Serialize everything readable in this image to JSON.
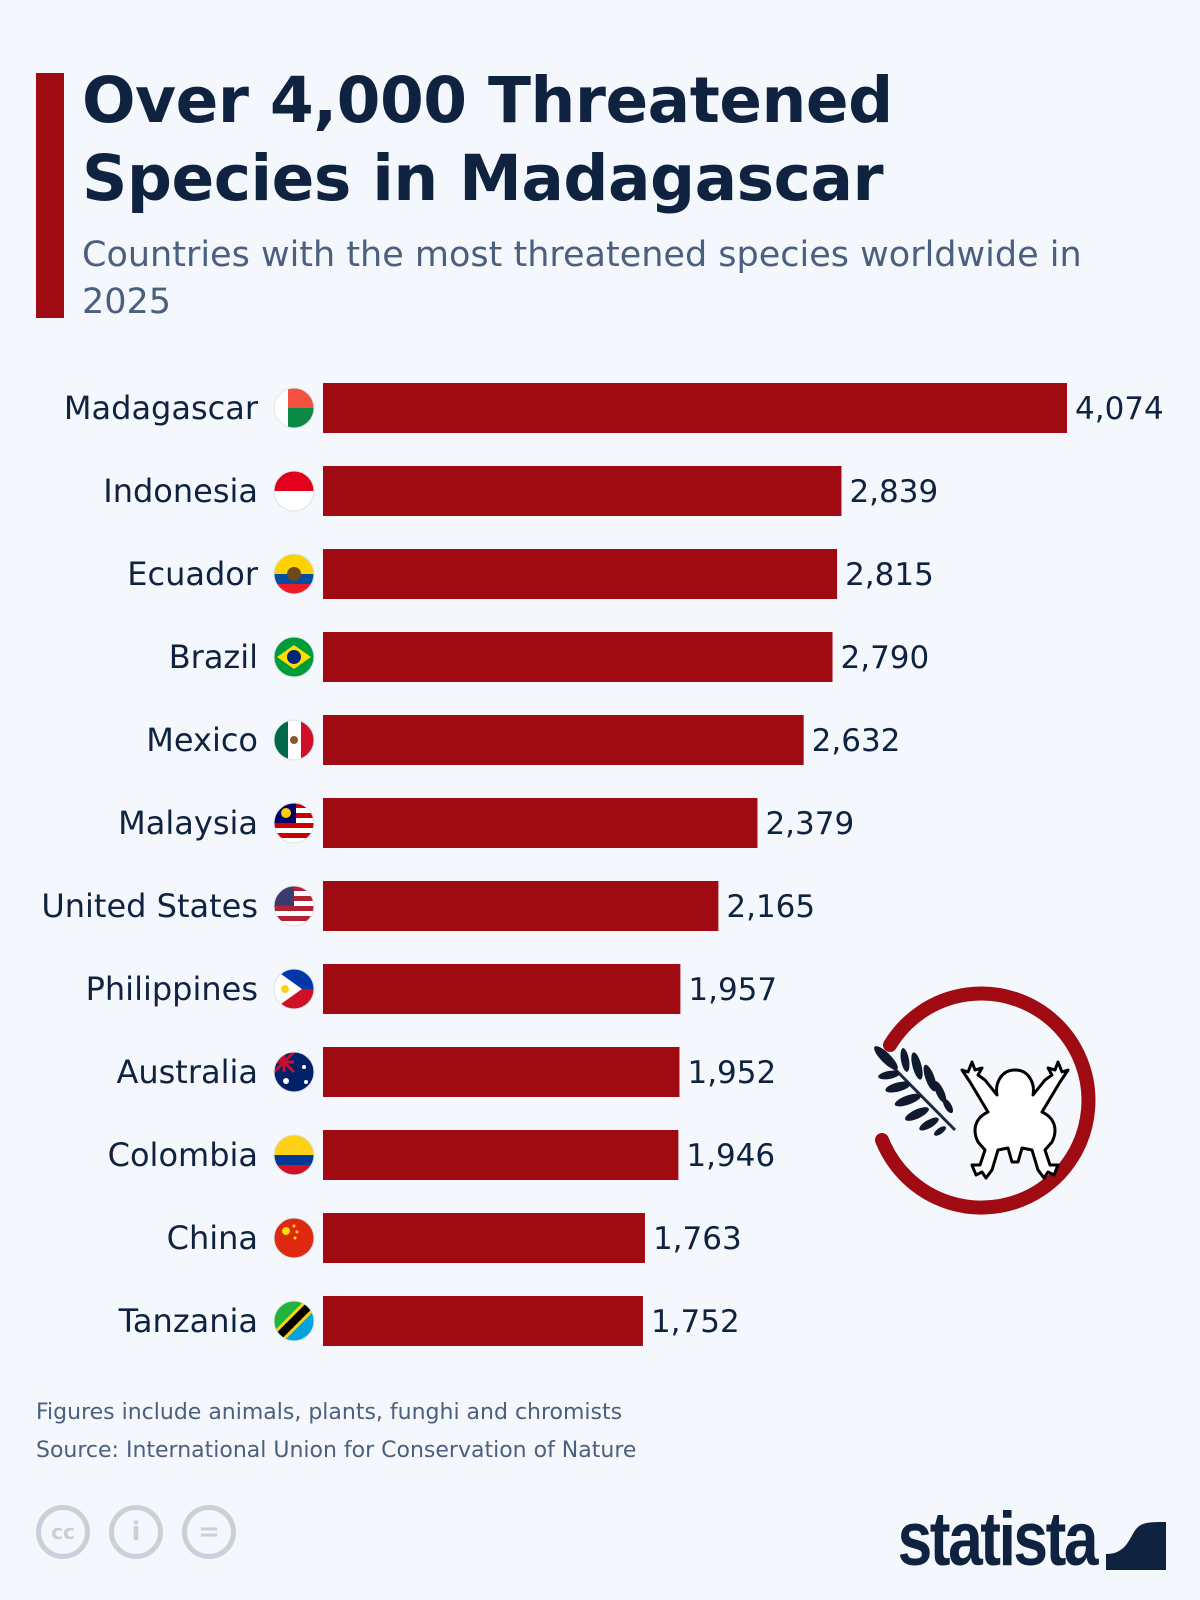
{
  "title": "Over 4,000 Threatened Species in Madagascar",
  "subtitle": "Countries with the most threatened species worldwide in 2025",
  "colors": {
    "bar": "#a00a12",
    "title": "#0f2341",
    "subtitle": "#4b5f7e",
    "background": "#f4f7fb"
  },
  "chart_data": {
    "type": "bar",
    "orientation": "horizontal",
    "categories": [
      "Madagascar",
      "Indonesia",
      "Ecuador",
      "Brazil",
      "Mexico",
      "Malaysia",
      "United States",
      "Philippines",
      "Australia",
      "Colombia",
      "China",
      "Tanzania"
    ],
    "values": [
      4074,
      2839,
      2815,
      2790,
      2632,
      2379,
      2165,
      1957,
      1952,
      1946,
      1763,
      1752
    ],
    "value_labels": [
      "4,074",
      "2,839",
      "2,815",
      "2,790",
      "2,632",
      "2,379",
      "2,165",
      "1,957",
      "1,952",
      "1,946",
      "1,763",
      "1,752"
    ],
    "xlim": [
      0,
      4074
    ],
    "grid": false,
    "category_icons": "country-flags"
  },
  "illustration": "leaf-and-frog-in-circle-icon",
  "footer": {
    "note": "Figures include animals, plants, funghi and chromists",
    "source": "Source: International Union for Conservation of Nature"
  },
  "license_icons": [
    "cc-icon",
    "attribution-icon",
    "no-derivatives-icon"
  ],
  "license_glyphs": [
    "cc",
    "i",
    "="
  ],
  "brand": "statista"
}
